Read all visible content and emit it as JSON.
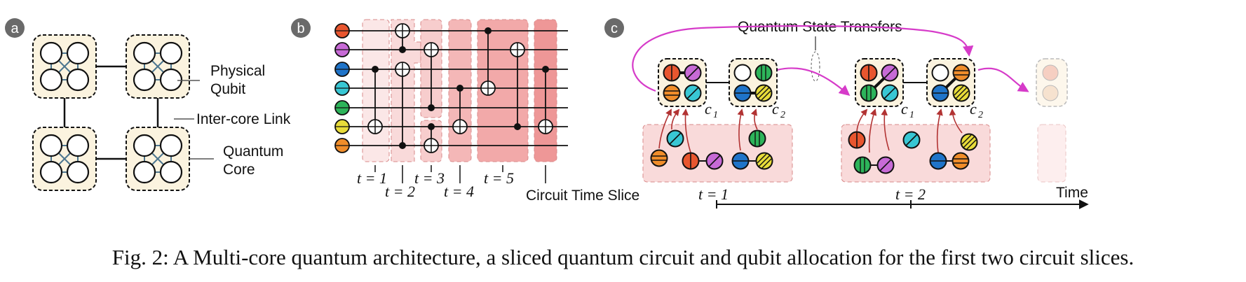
{
  "panel_labels": {
    "a": "a",
    "b": "b",
    "c": "c"
  },
  "panel_a": {
    "label_physical_qubit_1": "Physical",
    "label_physical_qubit_2": "Qubit",
    "label_intercore_link": "Inter-core Link",
    "label_quantum_core_1": "Quantum",
    "label_quantum_core_2": "Core"
  },
  "panel_b": {
    "qubit_colors": [
      "#e8562f",
      "#c76ad6",
      "#1f74c9",
      "#38c7d4",
      "#2db45a",
      "#e8dc3a",
      "#f08d2a"
    ],
    "slice_labels": {
      "t1": "t = 1",
      "t2": "t = 2",
      "t3": "t = 3",
      "t4": "t = 4",
      "t5": "t = 5"
    },
    "label_circuit_time_slice": "Circuit Time Slice"
  },
  "panel_c": {
    "label_state_transfers": "Quantum State Transfers",
    "core_labels": {
      "c1": "c",
      "c1_sub": "1",
      "c2": "c",
      "c2_sub": "2"
    },
    "time_labels": {
      "t1": "t = 1",
      "t2": "t = 2"
    },
    "label_time": "Time"
  },
  "colors": {
    "core_fill": "#fbf3df",
    "slice_fill": "#f9d9d9",
    "slice_border": "#d88a8a",
    "transfer_arrow": "#d63bc9",
    "dark_red_arrow": "#b23333",
    "badge": "#6a6a6a"
  },
  "caption": "Fig. 2: A Multi-core quantum architecture, a sliced quantum circuit and qubit allocation for the first two circuit slices."
}
